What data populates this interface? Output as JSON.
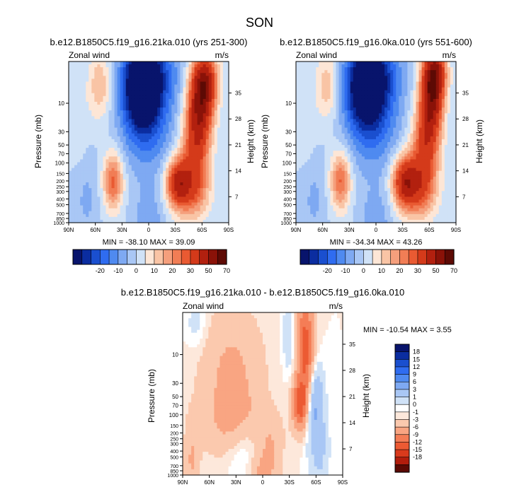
{
  "chart_data": {
    "type": "heatmap",
    "title": "SON",
    "panels": [
      {
        "id": "case1",
        "title": "b.e12.B1850C5.f19_g16.21ka.010 (yrs 251-300)",
        "left_label": "Zonal wind",
        "right_label": "m/s",
        "ylabel": "Pressure (mb)",
        "ylabel_right": "Height (km)",
        "x_ticks": [
          "90N",
          "60N",
          "30N",
          "0",
          "30S",
          "60S",
          "90S"
        ],
        "y_ticks": [
          "10",
          "30",
          "50",
          "70",
          "100",
          "150",
          "200",
          "250",
          "300",
          "400",
          "500",
          "700",
          "850",
          "1000"
        ],
        "height_ticks": [
          "35",
          "28",
          "21",
          "14",
          "7"
        ],
        "stats": "MIN = -38.10  MAX = 39.09",
        "blobs": [
          {
            "lat": 55,
            "p": 5,
            "v": 15,
            "sx": 9,
            "sy": 0.42
          },
          {
            "lat": 8,
            "p": 5,
            "v": -42,
            "sx": 15,
            "sy": 0.55
          },
          {
            "lat": 0,
            "p": 20,
            "v": -14,
            "sx": 22,
            "sy": 0.7
          },
          {
            "lat": -10,
            "p": 3,
            "v": -12,
            "sx": 20,
            "sy": 0.4
          },
          {
            "lat": 40,
            "p": 200,
            "v": 27,
            "sx": 8,
            "sy": 0.35
          },
          {
            "lat": -32,
            "p": 210,
            "v": 36,
            "sx": 9,
            "sy": 0.3
          },
          {
            "lat": -48,
            "p": 300,
            "v": 22,
            "sx": 14,
            "sy": 0.35
          },
          {
            "lat": -52,
            "p": 60,
            "v": 28,
            "sx": 11,
            "sy": 0.5
          },
          {
            "lat": -58,
            "p": 12,
            "v": 38,
            "sx": 10,
            "sy": 0.45
          },
          {
            "lat": -63,
            "p": 4,
            "v": 40,
            "sx": 10,
            "sy": 0.35
          },
          {
            "lat": 0,
            "p": 900,
            "v": -8,
            "sx": 12,
            "sy": 0.35
          },
          {
            "lat": 70,
            "p": 400,
            "v": -6,
            "sx": 10,
            "sy": 0.5
          },
          {
            "lat": 80,
            "p": 20,
            "v": 5,
            "sx": 8,
            "sy": 0.5
          }
        ]
      },
      {
        "id": "case2",
        "title": "b.e12.B1850C5.f19_g16.0ka.010 (yrs 551-600)",
        "left_label": "Zonal wind",
        "right_label": "m/s",
        "ylabel": "Pressure (mb)",
        "ylabel_right": "Height (km)",
        "x_ticks": [
          "90N",
          "60N",
          "30N",
          "0",
          "30S",
          "60S",
          "90S"
        ],
        "y_ticks": [
          "10",
          "30",
          "50",
          "70",
          "100",
          "150",
          "200",
          "250",
          "300",
          "400",
          "500",
          "700",
          "850",
          "1000"
        ],
        "height_ticks": [
          "35",
          "28",
          "21",
          "14",
          "7"
        ],
        "stats": "MIN = -34.34  MAX =  43.26",
        "blobs": [
          {
            "lat": 55,
            "p": 5,
            "v": 14,
            "sx": 9,
            "sy": 0.42
          },
          {
            "lat": 12,
            "p": 5,
            "v": -40,
            "sx": 16,
            "sy": 0.55
          },
          {
            "lat": 0,
            "p": 20,
            "v": -13,
            "sx": 22,
            "sy": 0.7
          },
          {
            "lat": -8,
            "p": 3,
            "v": -11,
            "sx": 18,
            "sy": 0.4
          },
          {
            "lat": 40,
            "p": 200,
            "v": 26,
            "sx": 8,
            "sy": 0.35
          },
          {
            "lat": -32,
            "p": 200,
            "v": 38,
            "sx": 10,
            "sy": 0.32
          },
          {
            "lat": -48,
            "p": 300,
            "v": 22,
            "sx": 14,
            "sy": 0.35
          },
          {
            "lat": -55,
            "p": 60,
            "v": 30,
            "sx": 11,
            "sy": 0.5
          },
          {
            "lat": -62,
            "p": 10,
            "v": 42,
            "sx": 9,
            "sy": 0.45
          },
          {
            "lat": -66,
            "p": 3,
            "v": 44,
            "sx": 9,
            "sy": 0.35
          },
          {
            "lat": 0,
            "p": 900,
            "v": -8,
            "sx": 12,
            "sy": 0.35
          },
          {
            "lat": 70,
            "p": 400,
            "v": -6,
            "sx": 10,
            "sy": 0.5
          },
          {
            "lat": 80,
            "p": 20,
            "v": 5,
            "sx": 8,
            "sy": 0.5
          }
        ]
      },
      {
        "id": "diff",
        "title": "b.e12.B1850C5.f19_g16.21ka.010 - b.e12.B1850C5.f19_g16.0ka.010",
        "left_label": "Zonal wind",
        "right_label": "m/s",
        "ylabel": "Pressure (mb)",
        "ylabel_right": "Height (km)",
        "x_ticks": [
          "90N",
          "60N",
          "30N",
          "0",
          "30S",
          "60S",
          "90S"
        ],
        "y_ticks": [
          "10",
          "30",
          "50",
          "70",
          "100",
          "150",
          "200",
          "250",
          "300",
          "400",
          "500",
          "700",
          "850",
          "1000"
        ],
        "height_ticks": [
          "35",
          "28",
          "21",
          "14",
          "7"
        ],
        "stats": "MIN = -10.54  MAX =   3.55",
        "blobs": [
          {
            "lat": 75,
            "p": 3,
            "v": 2,
            "sx": 8,
            "sy": 0.3
          },
          {
            "lat": 35,
            "p": 20,
            "v": -3.5,
            "sx": 25,
            "sy": 0.8
          },
          {
            "lat": 30,
            "p": 150,
            "v": -2.5,
            "sx": 25,
            "sy": 0.4
          },
          {
            "lat": -30,
            "p": 5,
            "v": 3,
            "sx": 5,
            "sy": 0.45
          },
          {
            "lat": -48,
            "p": 8,
            "v": -11,
            "sx": 7,
            "sy": 0.6
          },
          {
            "lat": -42,
            "p": 70,
            "v": -10,
            "sx": 6,
            "sy": 0.3
          },
          {
            "lat": -58,
            "p": 100,
            "v": 4,
            "sx": 7,
            "sy": 0.55
          },
          {
            "lat": -60,
            "p": 40,
            "v": 3,
            "sx": 6,
            "sy": 0.4
          },
          {
            "lat": -65,
            "p": 400,
            "v": 3,
            "sx": 7,
            "sy": 0.5
          },
          {
            "lat": 20,
            "p": 400,
            "v": 2.5,
            "sx": 14,
            "sy": 0.4
          },
          {
            "lat": -10,
            "p": 250,
            "v": -2,
            "sx": 10,
            "sy": 0.3
          },
          {
            "lat": 80,
            "p": 600,
            "v": -3,
            "sx": 6,
            "sy": 0.5
          },
          {
            "lat": 0,
            "p": 900,
            "v": -4,
            "sx": 12,
            "sy": 0.3
          }
        ]
      }
    ],
    "colorbar_main": {
      "levels": [
        -20,
        -10,
        0,
        10,
        20,
        30,
        50,
        70
      ],
      "labels": [
        "-20",
        "-10",
        "0",
        "10",
        "20",
        "30",
        "50",
        "70"
      ],
      "boundaries": [
        -30,
        -25,
        -20,
        -15,
        -10,
        -5,
        0,
        5,
        10,
        15,
        20,
        25,
        30,
        40,
        50,
        60,
        70
      ],
      "colors": [
        "#08146c",
        "#0b2da0",
        "#1a4fcf",
        "#2f6cf0",
        "#4f8af0",
        "#7ea9f2",
        "#a9c7f5",
        "#d0e2f7",
        "#fde6d6",
        "#f9c4a5",
        "#f59f7c",
        "#f17d55",
        "#e95a32",
        "#d43a1a",
        "#b2200f",
        "#8a1208",
        "#5d0a04"
      ]
    },
    "colorbar_diff": {
      "labels": [
        "18",
        "15",
        "12",
        "9",
        "6",
        "3",
        "1",
        "0",
        "-1",
        "-3",
        "-6",
        "-9",
        "-12",
        "-15",
        "-18"
      ],
      "boundaries": [
        -18,
        -15,
        -12,
        -9,
        -6,
        -3,
        -1,
        0,
        1,
        3,
        6,
        9,
        12,
        15,
        18
      ],
      "colors": [
        "#5c0a04",
        "#b21d0c",
        "#d93a1c",
        "#ec5a33",
        "#f47d56",
        "#f9a582",
        "#fbc9ae",
        "#fde8db",
        "#ffffff",
        "#d0e2f7",
        "#a9c7f5",
        "#7ea9f2",
        "#4f8af0",
        "#2f6cf0",
        "#1a4fcf",
        "#0b2da0",
        "#08146c"
      ]
    }
  }
}
